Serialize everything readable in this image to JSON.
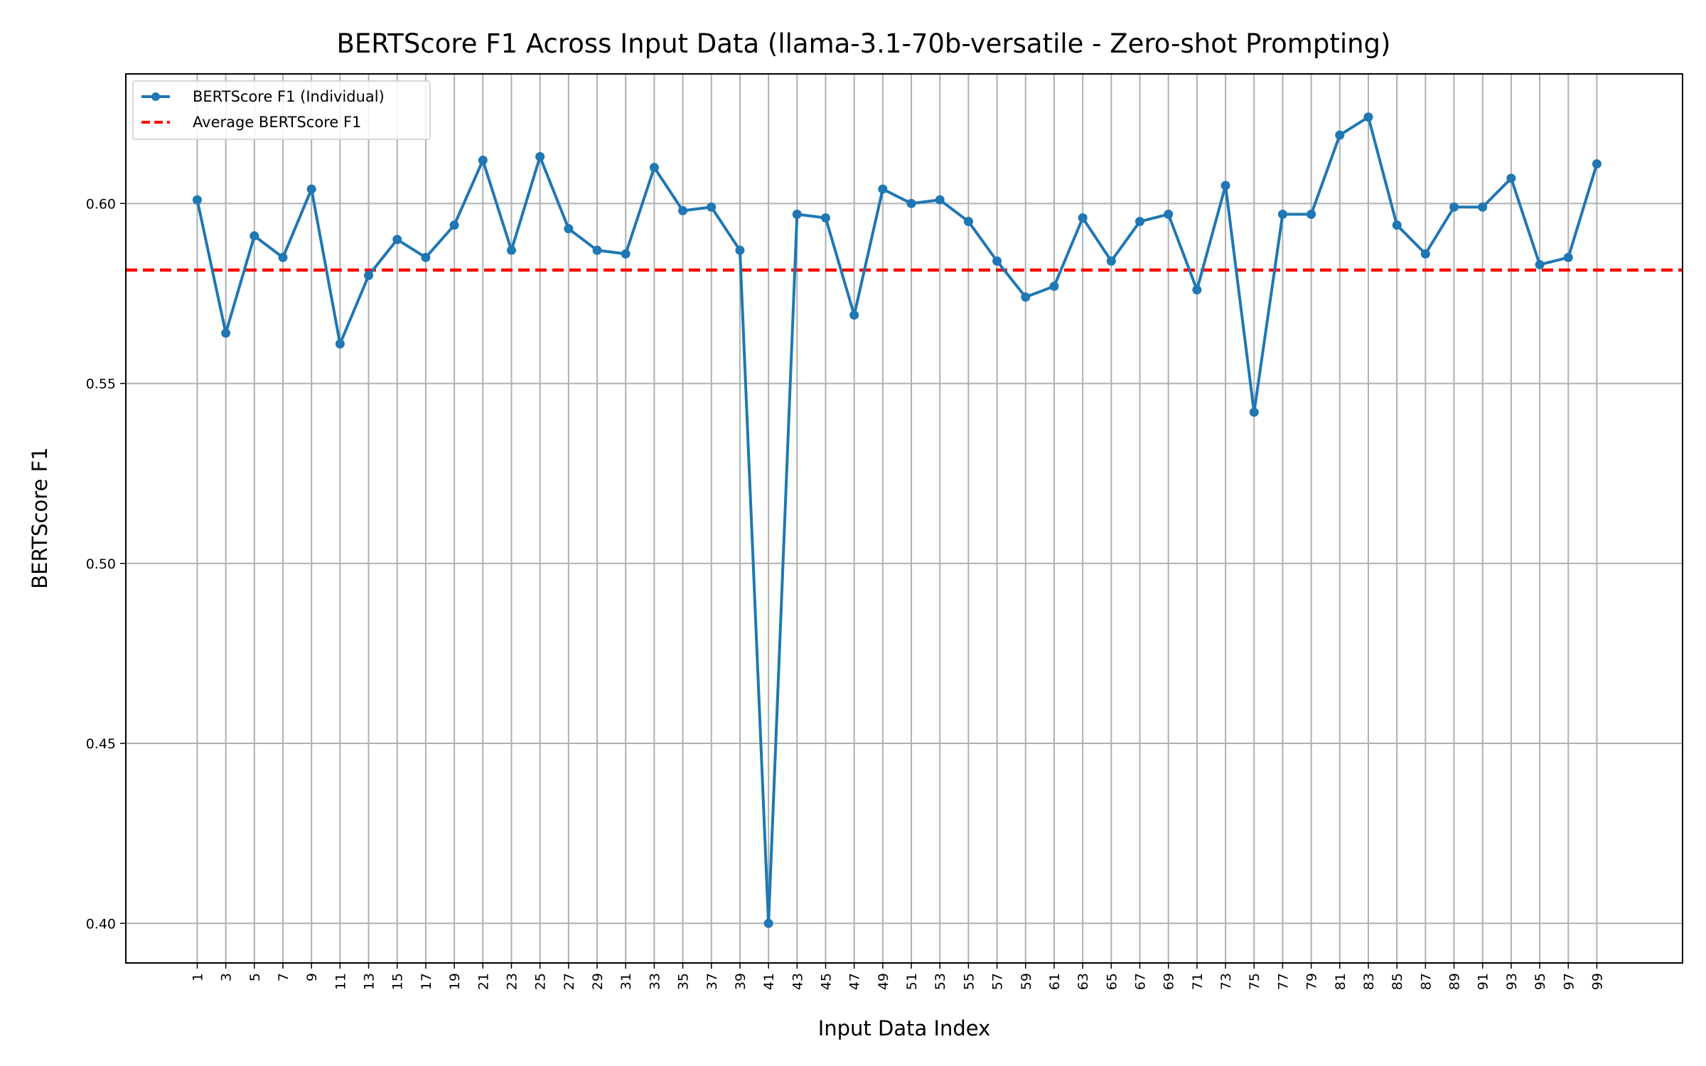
{
  "chart_data": {
    "type": "line",
    "title": "BERTScore F1 Across Input Data (llama-3.1-70b-versatile - Zero-shot Prompting)",
    "xlabel": "Input Data Index",
    "ylabel": "BERTScore F1",
    "x": [
      1,
      3,
      5,
      7,
      9,
      11,
      13,
      15,
      17,
      19,
      21,
      23,
      25,
      27,
      29,
      31,
      33,
      35,
      37,
      39,
      41,
      43,
      45,
      47,
      49,
      51,
      53,
      55,
      57,
      59,
      61,
      63,
      65,
      67,
      69,
      71,
      73,
      75,
      77,
      79,
      81,
      83,
      85,
      87,
      89,
      91,
      93,
      95,
      97,
      99
    ],
    "xticks": [
      "1",
      "3",
      "5",
      "7",
      "9",
      "11",
      "13",
      "15",
      "17",
      "19",
      "21",
      "23",
      "25",
      "27",
      "29",
      "31",
      "33",
      "35",
      "37",
      "39",
      "41",
      "43",
      "45",
      "47",
      "49",
      "51",
      "53",
      "55",
      "57",
      "59",
      "61",
      "63",
      "65",
      "67",
      "69",
      "71",
      "73",
      "75",
      "77",
      "79",
      "81",
      "83",
      "85",
      "87",
      "89",
      "91",
      "93",
      "95",
      "97",
      "99"
    ],
    "yticks": [
      "0.40",
      "0.45",
      "0.50",
      "0.55",
      "0.60"
    ],
    "ytick_values": [
      0.4,
      0.45,
      0.5,
      0.55,
      0.6
    ],
    "xlim": [
      -4,
      105
    ],
    "ylim": [
      0.389,
      0.636
    ],
    "grid": true,
    "legend_position": "top-left",
    "series": [
      {
        "name": "BERTScore F1 (Individual)",
        "color": "#1f77b4",
        "style": "solid-with-markers",
        "values": [
          0.601,
          0.564,
          0.591,
          0.585,
          0.604,
          0.561,
          0.58,
          0.59,
          0.585,
          0.594,
          0.612,
          0.587,
          0.613,
          0.593,
          0.587,
          0.586,
          0.61,
          0.598,
          0.599,
          0.587,
          0.4,
          0.597,
          0.596,
          0.569,
          0.604,
          0.6,
          0.601,
          0.595,
          0.584,
          0.574,
          0.577,
          0.596,
          0.584,
          0.595,
          0.597,
          0.576,
          0.605,
          0.542,
          0.597,
          0.597,
          0.619,
          0.624,
          0.594,
          0.586,
          0.599,
          0.599,
          0.607,
          0.583,
          0.585,
          0.611
        ]
      },
      {
        "name": "Average BERTScore F1",
        "color": "#ff0000",
        "style": "dashed",
        "value": 0.5815
      }
    ]
  }
}
